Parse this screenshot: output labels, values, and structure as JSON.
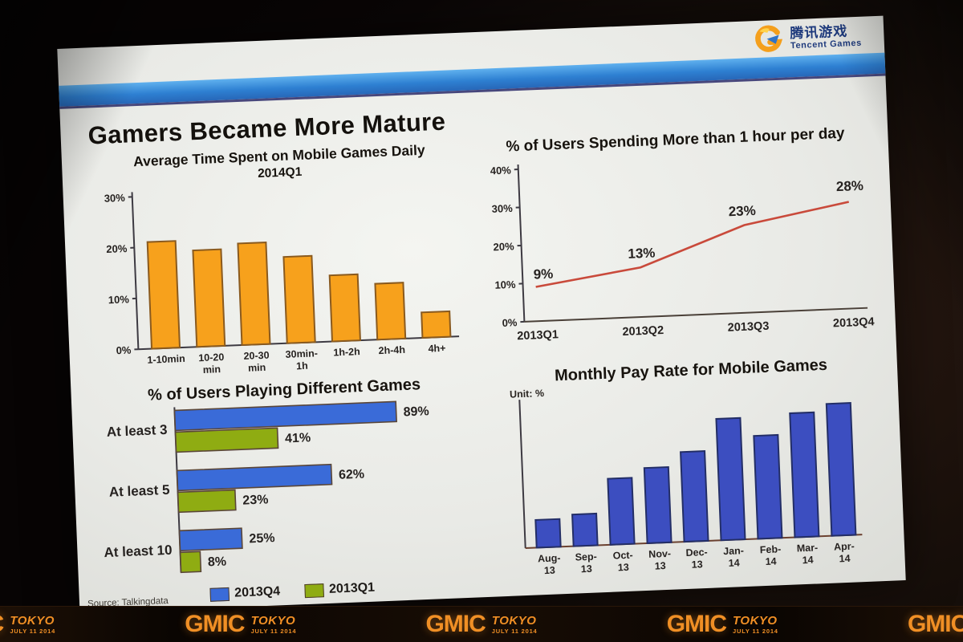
{
  "slide": {
    "title": "Gamers Became More Mature",
    "source": "Source: Talkingdata"
  },
  "logo": {
    "cn": "腾讯游戏",
    "en": "Tencent Games"
  },
  "banner": {
    "brand": "GMIC",
    "city": "TOKYO",
    "date": "JULY 11 2014",
    "repeat": 5
  },
  "colors": {
    "header_bar_blue": "#2e80d2",
    "orange_bar": "#F7A11C",
    "orange_border": "#8A5A1E",
    "red_line": "#C94A3B",
    "blue_series": "#3A6BD8",
    "green_series": "#8FAC12",
    "pay_rate_blue": "#3C4EC0",
    "pay_rate_border": "#232E66",
    "gmic_orange": "#f08f25"
  },
  "chart_data": [
    {
      "type": "bar",
      "title": "Average  Time Spent on Mobile Games Daily",
      "subtitle": "2014Q1",
      "categories": [
        "1-10min",
        "10-20\nmin",
        "20-30\nmin",
        "30min-\n1h",
        "1h-2h",
        "2h-4h",
        "4h+"
      ],
      "values": [
        21,
        19,
        20,
        17,
        13,
        11,
        5
      ],
      "unit": "%",
      "ylim": [
        0,
        30
      ],
      "yticks": [
        0,
        10,
        20,
        30
      ],
      "bar_color": "#F7A11C",
      "bar_border": "#8A5A1E"
    },
    {
      "type": "line",
      "title": "% of Users Spending More than 1 hour per day",
      "x": [
        "2013Q1",
        "2013Q2",
        "2013Q3",
        "2013Q4"
      ],
      "values": [
        9,
        13,
        23,
        28
      ],
      "data_labels": [
        "9%",
        "13%",
        "23%",
        "28%"
      ],
      "unit": "%",
      "ylim": [
        0,
        40
      ],
      "yticks": [
        0,
        10,
        20,
        30,
        40
      ],
      "line_color": "#C94A3B"
    },
    {
      "type": "hbar",
      "title": "% of Users Playing Different Games",
      "categories": [
        "At least 3",
        "At least 5",
        "At least 10"
      ],
      "series": [
        {
          "name": "2013Q4",
          "color": "#3A6BD8",
          "values": [
            89,
            62,
            25
          ]
        },
        {
          "name": "2013Q1",
          "color": "#8FAC12",
          "values": [
            41,
            23,
            8
          ]
        }
      ],
      "unit": "%",
      "xlim": [
        0,
        100
      ],
      "legend_position": "bottom"
    },
    {
      "type": "bar",
      "title": "Monthly Pay Rate for Mobile Games",
      "unit_label": "Unit: %",
      "categories": [
        "Aug-\n13",
        "Sep-\n13",
        "Oct-\n13",
        "Nov-\n13",
        "Dec-\n13",
        "Jan-\n14",
        "Feb-\n14",
        "Mar-\n14",
        "Apr-\n14"
      ],
      "values_relative_pct_of_max": [
        21,
        24,
        50,
        57,
        68,
        92,
        78,
        94,
        100
      ],
      "y_axis_labels_visible": false,
      "bar_color": "#3C4EC0",
      "bar_border": "#232E66"
    }
  ]
}
